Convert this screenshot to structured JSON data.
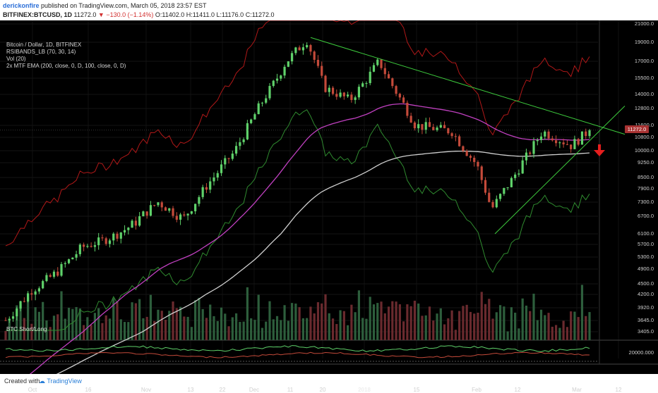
{
  "header": {
    "author": "derickonfire",
    "published_text": "published on TradingView.com, March 05, 2018 23:57 EST",
    "symbol": "BITFINEX:BTCUSD, 1D",
    "last": "11272.0",
    "change": "−130.0 (−1.14%)",
    "ohlc": "O:11402.0 H:11411.0 L:11176.0 C:11272.0"
  },
  "legend": [
    "Bitcoin / Dollar, 1D, BITFINEX",
    "RSIBANDS_LB (70, 30, 14)",
    "Vol (20)",
    "2x MTF EMA (200, close, 0, D, 100, close, 0, D)"
  ],
  "lower_pane": {
    "label": "BTC Short/Long",
    "value_label": "20000.000"
  },
  "footer": {
    "created": "Created with",
    "brand": "TradingView"
  },
  "price_tag": "11272.0",
  "colors": {
    "up": "#5fd16a",
    "down": "#c44a3a",
    "ema100": "#c040c0",
    "ema200": "#cfcfcf",
    "rsi_upper": "#b01818",
    "rsi_lower": "#2f8a2f",
    "trendline": "#3dcb3d",
    "arrow": "#e61e1e"
  },
  "chart_data": {
    "type": "candlestick",
    "title": "Bitcoin / Dollar, 1D, BITFINEX",
    "y_ticks": [
      21000,
      19000,
      17000,
      15500,
      14000,
      12800,
      11600,
      10800,
      10000,
      9250,
      8500,
      7900,
      7300,
      6700,
      6100,
      5700,
      5300,
      4900,
      4500,
      4200,
      3920,
      3645,
      3405
    ],
    "x_ticks": [
      "Oct",
      "16",
      "Nov",
      "13",
      "22",
      "Dec",
      "11",
      "20",
      "2018",
      "15",
      "Feb",
      "12",
      "Mar",
      "12"
    ],
    "last_close": 11272.0,
    "series": [
      {
        "name": "Bitcoin / Dollar",
        "dates": [
          "2017-09-25",
          "2017-10-02",
          "2017-10-09",
          "2017-10-16",
          "2017-10-23",
          "2017-10-30",
          "2017-11-06",
          "2017-11-13",
          "2017-11-20",
          "2017-11-27",
          "2017-12-04",
          "2017-12-11",
          "2017-12-17",
          "2017-12-22",
          "2017-12-29",
          "2018-01-06",
          "2018-01-16",
          "2018-01-26",
          "2018-02-02",
          "2018-02-06",
          "2018-02-12",
          "2018-02-20",
          "2018-02-28",
          "2018-03-05"
        ],
        "close": [
          3650,
          4300,
          4800,
          5600,
          5900,
          6400,
          7300,
          6600,
          8200,
          9900,
          13000,
          16800,
          19300,
          14600,
          13500,
          17000,
          11600,
          11200,
          9100,
          7000,
          8500,
          11200,
          10300,
          11272
        ]
      }
    ],
    "volume": {
      "name": "Vol (20)"
    }
  }
}
